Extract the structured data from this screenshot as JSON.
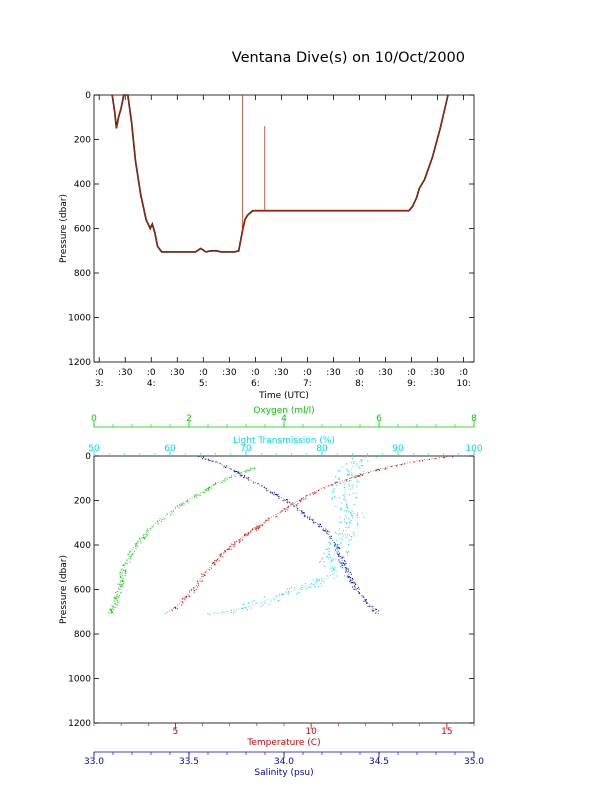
{
  "title": "Ventana Dive(s) on 10/Oct/2000",
  "colors": {
    "axis": "#000000",
    "pressure_trace": "#cc2200",
    "oxygen": "#00cc00",
    "light": "#00e0e0",
    "temperature": "#dd0000",
    "salinity": "#0000cc"
  },
  "chart_data": [
    {
      "type": "line",
      "title": "Ventana Dive(s) on 10/Oct/2000",
      "xlabel": "Time (UTC)",
      "ylabel": "Pressure (dbar)",
      "ylim": [
        1200,
        0
      ],
      "yticks": [
        0,
        200,
        400,
        600,
        800,
        1000,
        1200
      ],
      "ytick_labels": [
        "0",
        "200",
        "400",
        "600",
        "800",
        "1000",
        "1200"
      ],
      "xlim": [
        2.9,
        10.2
      ],
      "xticks": [
        {
          "t": 3.0,
          "top": ":0",
          "bottom": "3:"
        },
        {
          "t": 3.5,
          "top": ":30",
          "bottom": ""
        },
        {
          "t": 4.0,
          "top": ":0",
          "bottom": "4:"
        },
        {
          "t": 4.5,
          "top": ":30",
          "bottom": ""
        },
        {
          "t": 5.0,
          "top": ":0",
          "bottom": "5:"
        },
        {
          "t": 5.5,
          "top": ":30",
          "bottom": ""
        },
        {
          "t": 6.0,
          "top": ":0",
          "bottom": "6:"
        },
        {
          "t": 6.5,
          "top": ":30",
          "bottom": ""
        },
        {
          "t": 7.0,
          "top": ":0",
          "bottom": "7:"
        },
        {
          "t": 7.5,
          "top": ":30",
          "bottom": ""
        },
        {
          "t": 8.0,
          "top": ":0",
          "bottom": "8:"
        },
        {
          "t": 8.5,
          "top": ":30",
          "bottom": ""
        },
        {
          "t": 9.0,
          "top": ":0",
          "bottom": "9:"
        },
        {
          "t": 9.5,
          "top": ":30",
          "bottom": ""
        },
        {
          "t": 10.0,
          "top": ":0",
          "bottom": "10:"
        }
      ],
      "series": [
        {
          "color": "#cc2200",
          "time_hours": [
            3.25,
            3.3,
            3.33,
            3.37,
            3.42,
            3.47,
            3.55,
            3.62,
            3.7,
            3.8,
            3.9,
            3.98,
            4.02,
            4.07,
            4.12,
            4.2,
            4.4,
            4.6,
            4.85,
            4.95,
            5.05,
            5.15,
            5.25,
            5.35,
            5.45,
            5.6,
            5.68,
            5.72,
            5.76,
            5.8,
            5.85,
            5.9,
            5.95,
            6.2,
            6.7,
            7.2,
            7.7,
            8.2,
            8.6,
            8.95,
            9.02,
            9.1,
            9.15,
            9.25,
            9.4,
            9.55,
            9.7
          ],
          "pressure": [
            0,
            80,
            150,
            100,
            60,
            0,
            0,
            120,
            300,
            450,
            560,
            600,
            580,
            620,
            680,
            705,
            705,
            705,
            705,
            690,
            705,
            700,
            700,
            705,
            705,
            705,
            700,
            650,
            600,
            560,
            540,
            530,
            520,
            520,
            520,
            520,
            520,
            520,
            520,
            520,
            500,
            460,
            420,
            380,
            280,
            150,
            0
          ]
        }
      ],
      "spikes": [
        {
          "time_hours": 5.75,
          "pressure_from": 0,
          "pressure_to": 630
        },
        {
          "time_hours": 6.18,
          "pressure_from": 140,
          "pressure_to": 520
        }
      ]
    },
    {
      "type": "scatter",
      "ylabel": "Pressure (dbar)",
      "ylim": [
        1200,
        0
      ],
      "yticks": [
        0,
        200,
        400,
        600,
        800,
        1000,
        1200
      ],
      "ytick_labels": [
        "0",
        "200",
        "400",
        "600",
        "800",
        "1000",
        "1200"
      ],
      "axes": [
        {
          "id": "oxygen",
          "label": "Oxygen (ml/l)",
          "position": "top-outer",
          "color": "#00cc00",
          "range": [
            0,
            8
          ],
          "ticks": [
            0,
            2,
            4,
            6,
            8
          ],
          "tick_labels": [
            "0",
            "2",
            "4",
            "6",
            "8"
          ]
        },
        {
          "id": "light",
          "label": "Light Transmission (%)",
          "position": "top-inner",
          "color": "#00e0e0",
          "range": [
            50,
            100
          ],
          "ticks": [
            50,
            60,
            70,
            80,
            90,
            100
          ],
          "tick_labels": [
            "50",
            "60",
            "70",
            "80",
            "90",
            "100"
          ]
        },
        {
          "id": "temperature",
          "label": "Temperature (C)",
          "position": "bottom-inner",
          "color": "#dd0000",
          "range": [
            2.0,
            16.0
          ],
          "ticks": [
            5,
            10,
            15
          ],
          "tick_labels": [
            "5",
            "10",
            "15"
          ]
        },
        {
          "id": "salinity",
          "label": "Salinity (psu)",
          "position": "bottom-outer",
          "color": "#0000cc",
          "range": [
            33.0,
            35.0
          ],
          "ticks": [
            33.0,
            33.5,
            34.0,
            34.5,
            35.0
          ],
          "tick_labels": [
            "33.0",
            "33.5",
            "34.0",
            "34.5",
            "35.0"
          ]
        }
      ],
      "series": [
        {
          "axis": "temperature",
          "color": "#dd0000",
          "value": [
            15.2,
            14.0,
            12.8,
            11.9,
            11.2,
            10.5,
            9.8,
            9.3,
            8.6,
            8.0,
            7.4,
            6.9,
            6.5,
            6.2,
            6.0,
            5.8,
            5.4,
            5.0,
            4.6
          ],
          "pressure": [
            0,
            20,
            50,
            80,
            110,
            140,
            180,
            220,
            270,
            320,
            370,
            420,
            470,
            510,
            530,
            580,
            630,
            680,
            710
          ]
        },
        {
          "axis": "salinity",
          "color": "#0000cc",
          "value": [
            33.55,
            33.65,
            33.75,
            33.85,
            33.95,
            34.05,
            34.12,
            34.2,
            34.25,
            34.28,
            34.3,
            34.32,
            34.34,
            34.38,
            34.45,
            34.5
          ],
          "pressure": [
            0,
            30,
            70,
            120,
            170,
            220,
            270,
            320,
            370,
            410,
            460,
            500,
            530,
            600,
            670,
            710
          ]
        },
        {
          "axis": "oxygen",
          "color": "#00cc00",
          "value": [
            3.4,
            3.0,
            2.6,
            2.2,
            1.8,
            1.5,
            1.2,
            1.0,
            0.8,
            0.7,
            0.6,
            0.55,
            0.45,
            0.35
          ],
          "pressure": [
            50,
            80,
            120,
            170,
            220,
            270,
            320,
            370,
            420,
            470,
            520,
            580,
            650,
            710
          ]
        },
        {
          "axis": "light",
          "color": "#00e0e0",
          "value": [
            86,
            84,
            83,
            83,
            84,
            83,
            82,
            81,
            82,
            80,
            75,
            70,
            66
          ],
          "pressure": [
            0,
            50,
            120,
            200,
            280,
            350,
            420,
            480,
            520,
            560,
            620,
            680,
            710
          ]
        }
      ]
    }
  ]
}
